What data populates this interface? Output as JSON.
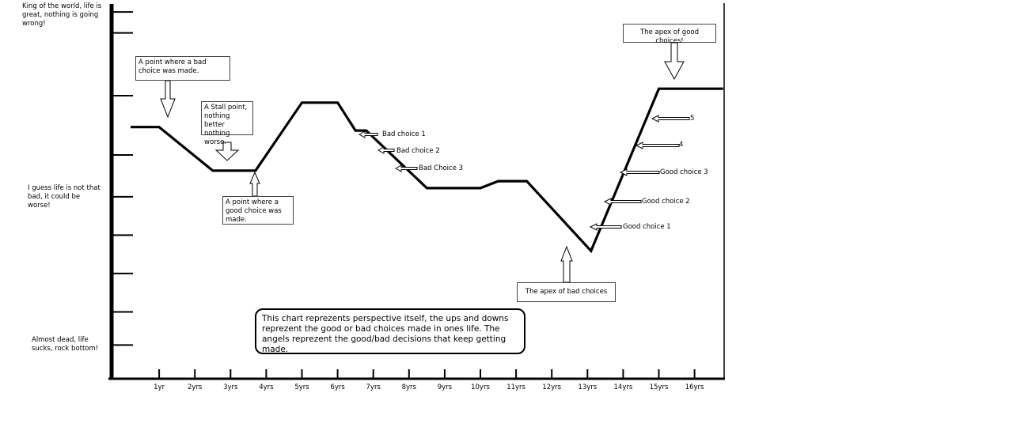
{
  "chart_data": {
    "type": "line",
    "title": "",
    "xlabel": "",
    "ylabel": "",
    "x_ticks": [
      "1yr",
      "2yrs",
      "3yrs",
      "4yrs",
      "5yrs",
      "6yrs",
      "7yrs",
      "8yrs",
      "9yrs",
      "10yrs",
      "11yrs",
      "12yrs",
      "13yrs",
      "14yrs",
      "15yrs",
      "16yrs"
    ],
    "y_levels": {
      "top": "King of the world, life is great, nothing is going wrong!",
      "middle": "I guess life is not that bad, it could be worse!",
      "bottom": "Almost dead, life sucks, rock bottom!"
    },
    "xlim": [
      0.0,
      17.0
    ],
    "ylim": [
      0,
      10
    ],
    "grid": false,
    "series": [
      {
        "x": [
          0.2,
          1.0,
          2.5,
          3.7,
          5.0,
          6.0,
          6.5,
          6.8,
          8.5,
          10.0,
          10.5,
          11.3,
          13.1,
          15.0,
          16.8
        ],
        "y": [
          6.9,
          6.9,
          5.65,
          5.65,
          7.6,
          7.6,
          6.8,
          6.8,
          5.15,
          5.15,
          5.35,
          5.35,
          3.35,
          8.0,
          8.0
        ]
      }
    ],
    "annotations": [
      {
        "text": "A point where a bad choice was made.",
        "target": "1yr"
      },
      {
        "text": "A Stall point, nothing better nothing worse.",
        "target": "2yrs-3yrs"
      },
      {
        "text": "A point where a good choice was made.",
        "target": "4yrs"
      },
      {
        "text": "Bad choice 1"
      },
      {
        "text": "Bad choice 2"
      },
      {
        "text": "Bad Choice 3"
      },
      {
        "text": "The apex of bad choices",
        "target": "13yrs"
      },
      {
        "text": "Good choice 1"
      },
      {
        "text": "Good choice 2"
      },
      {
        "text": "Good choice 3"
      },
      {
        "text": "4"
      },
      {
        "text": "5"
      },
      {
        "text": "The apex of good choices!",
        "target": "15yrs"
      }
    ],
    "caption": "This chart reprezents perspective itself, the ups and downs reprezent the good or bad choices made in ones life. The angels reprezent the good/bad decisions that keep getting made."
  }
}
